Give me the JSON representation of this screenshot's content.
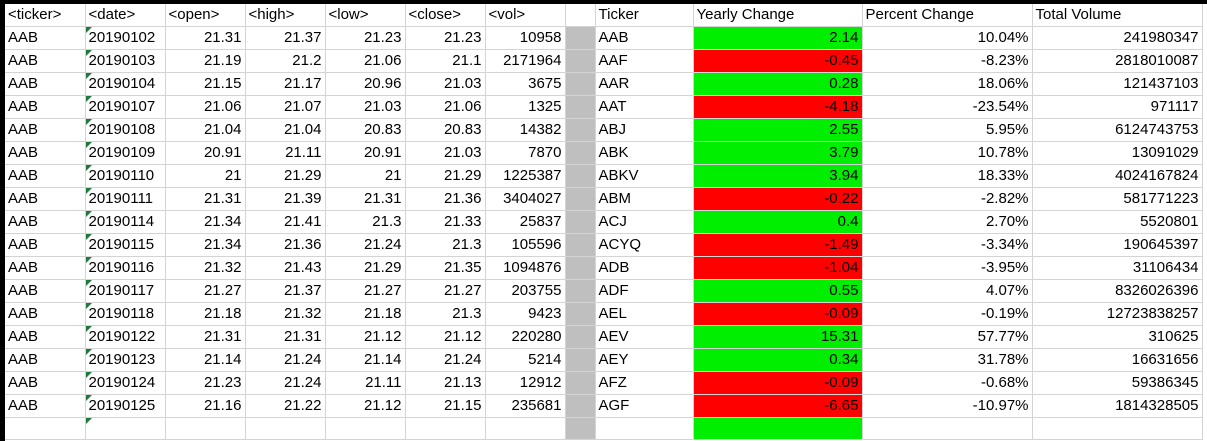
{
  "colors": {
    "positive_fill": "#00ee00",
    "negative_fill": "#ff0000",
    "separator_fill": "#bfbfbf",
    "gridline": "#d4d4d4",
    "date_indicator": "#1e7a3a"
  },
  "raw_headers": [
    "<ticker>",
    "<date>",
    "<open>",
    "<high>",
    "<low>",
    "<close>",
    "<vol>"
  ],
  "raw_rows": [
    [
      "AAB",
      "20190102",
      "21.31",
      "21.37",
      "21.23",
      "21.23",
      "10958"
    ],
    [
      "AAB",
      "20190103",
      "21.19",
      "21.2",
      "21.06",
      "21.1",
      "2171964"
    ],
    [
      "AAB",
      "20190104",
      "21.15",
      "21.17",
      "20.96",
      "21.03",
      "3675"
    ],
    [
      "AAB",
      "20190107",
      "21.06",
      "21.07",
      "21.03",
      "21.06",
      "1325"
    ],
    [
      "AAB",
      "20190108",
      "21.04",
      "21.04",
      "20.83",
      "20.83",
      "14382"
    ],
    [
      "AAB",
      "20190109",
      "20.91",
      "21.11",
      "20.91",
      "21.03",
      "7870"
    ],
    [
      "AAB",
      "20190110",
      "21",
      "21.29",
      "21",
      "21.29",
      "1225387"
    ],
    [
      "AAB",
      "20190111",
      "21.31",
      "21.39",
      "21.31",
      "21.36",
      "3404027"
    ],
    [
      "AAB",
      "20190114",
      "21.34",
      "21.41",
      "21.3",
      "21.33",
      "25837"
    ],
    [
      "AAB",
      "20190115",
      "21.34",
      "21.36",
      "21.24",
      "21.3",
      "105596"
    ],
    [
      "AAB",
      "20190116",
      "21.32",
      "21.43",
      "21.29",
      "21.35",
      "1094876"
    ],
    [
      "AAB",
      "20190117",
      "21.27",
      "21.37",
      "21.27",
      "21.27",
      "203755"
    ],
    [
      "AAB",
      "20190118",
      "21.18",
      "21.32",
      "21.18",
      "21.3",
      "9423"
    ],
    [
      "AAB",
      "20190122",
      "21.31",
      "21.31",
      "21.12",
      "21.12",
      "220280"
    ],
    [
      "AAB",
      "20190123",
      "21.14",
      "21.24",
      "21.14",
      "21.24",
      "5214"
    ],
    [
      "AAB",
      "20190124",
      "21.23",
      "21.24",
      "21.11",
      "21.13",
      "12912"
    ],
    [
      "AAB",
      "20190125",
      "21.16",
      "21.22",
      "21.12",
      "21.15",
      "235681"
    ]
  ],
  "summary_headers": [
    "Ticker",
    "Yearly Change",
    "Percent Change",
    "Total Volume"
  ],
  "summary_rows": [
    {
      "ticker": "AAB",
      "change": "2.14",
      "percent": "10.04%",
      "volume": "241980347",
      "sign": "positive"
    },
    {
      "ticker": "AAF",
      "change": "-0.45",
      "percent": "-8.23%",
      "volume": "2818010087",
      "sign": "negative"
    },
    {
      "ticker": "AAR",
      "change": "0.28",
      "percent": "18.06%",
      "volume": "121437103",
      "sign": "positive"
    },
    {
      "ticker": "AAT",
      "change": "-4.18",
      "percent": "-23.54%",
      "volume": "971117",
      "sign": "negative"
    },
    {
      "ticker": "ABJ",
      "change": "2.55",
      "percent": "5.95%",
      "volume": "6124743753",
      "sign": "positive"
    },
    {
      "ticker": "ABK",
      "change": "3.79",
      "percent": "10.78%",
      "volume": "13091029",
      "sign": "positive"
    },
    {
      "ticker": "ABKV",
      "change": "3.94",
      "percent": "18.33%",
      "volume": "4024167824",
      "sign": "positive"
    },
    {
      "ticker": "ABM",
      "change": "-0.22",
      "percent": "-2.82%",
      "volume": "581771223",
      "sign": "negative"
    },
    {
      "ticker": "ACJ",
      "change": "0.4",
      "percent": "2.70%",
      "volume": "5520801",
      "sign": "positive"
    },
    {
      "ticker": "ACYQ",
      "change": "-1.49",
      "percent": "-3.34%",
      "volume": "190645397",
      "sign": "negative"
    },
    {
      "ticker": "ADB",
      "change": "-1.04",
      "percent": "-3.95%",
      "volume": "31106434",
      "sign": "negative"
    },
    {
      "ticker": "ADF",
      "change": "0.55",
      "percent": "4.07%",
      "volume": "8326026396",
      "sign": "positive"
    },
    {
      "ticker": "AEL",
      "change": "-0.09",
      "percent": "-0.19%",
      "volume": "12723838257",
      "sign": "negative"
    },
    {
      "ticker": "AEV",
      "change": "15.31",
      "percent": "57.77%",
      "volume": "310625",
      "sign": "positive"
    },
    {
      "ticker": "AEY",
      "change": "0.34",
      "percent": "31.78%",
      "volume": "16631656",
      "sign": "positive"
    },
    {
      "ticker": "AFZ",
      "change": "-0.09",
      "percent": "-0.68%",
      "volume": "59386345",
      "sign": "negative"
    },
    {
      "ticker": "AGF",
      "change": "-6.65",
      "percent": "-10.97%",
      "volume": "1814328505",
      "sign": "negative"
    }
  ],
  "partial_row_sign": "positive"
}
